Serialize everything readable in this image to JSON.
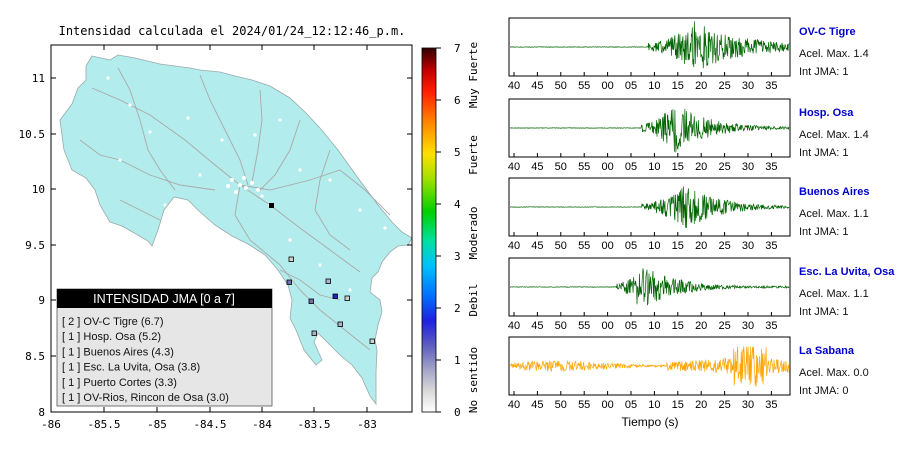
{
  "map": {
    "title": "Intensidad calculada el 2024/01/24_12:12:46_p.m.",
    "x_ticks": [
      "-86",
      "-85.5",
      "-85",
      "-84.5",
      "-84",
      "-83.5",
      "-83"
    ],
    "y_ticks": [
      "11",
      "10.5",
      "10",
      "9.5",
      "9",
      "8.5",
      "8"
    ],
    "legend": {
      "title": "INTENSIDAD JMA [0 a 7]",
      "items": [
        "[ 2 ]  OV-C Tigre (6.7)",
        "[ 1 ]  Hosp. Osa (5.2)",
        "[ 1 ]  Buenos Aires (4.3)",
        "[ 1 ]  Esc. La Uvita, Osa (3.8)",
        "[ 1 ]  Puerto Cortes (3.3)",
        "[ 1 ]  OV-Rios, Rincon de Osa (3.0)"
      ]
    },
    "land_color": "#b3ecec"
  },
  "colorbar": {
    "ticks": [
      "7",
      "6",
      "5",
      "4",
      "3",
      "2",
      "1",
      "0"
    ],
    "labels": [
      "Muy Fuerte",
      "Fuerte",
      "Moderado",
      "Debil",
      "No sentido"
    ]
  },
  "seismograms": {
    "x_ticks": [
      "40",
      "45",
      "50",
      "55",
      "00",
      "05",
      "10",
      "15",
      "20",
      "25",
      "30",
      "35"
    ],
    "xlabel": "Tiempo (s)",
    "stations": [
      {
        "name": "OV-C Tigre",
        "acel": "Acel. Max. 1.4",
        "int": "Int JMA: 1",
        "color": "#006400"
      },
      {
        "name": "Hosp. Osa",
        "acel": "Acel. Max. 1.4",
        "int": "Int JMA: 1",
        "color": "#006400"
      },
      {
        "name": "Buenos Aires",
        "acel": "Acel. Max. 1.1",
        "int": "Int JMA: 1",
        "color": "#006400"
      },
      {
        "name": "Esc. La Uvita, Osa",
        "acel": "Acel. Max. 1.1",
        "int": "Int JMA: 1",
        "color": "#006400"
      },
      {
        "name": "La Sabana",
        "acel": "Acel. Max. 0.0",
        "int": "Int JMA: 0",
        "color": "#ffa500"
      }
    ],
    "name_color": "#0000cc"
  }
}
